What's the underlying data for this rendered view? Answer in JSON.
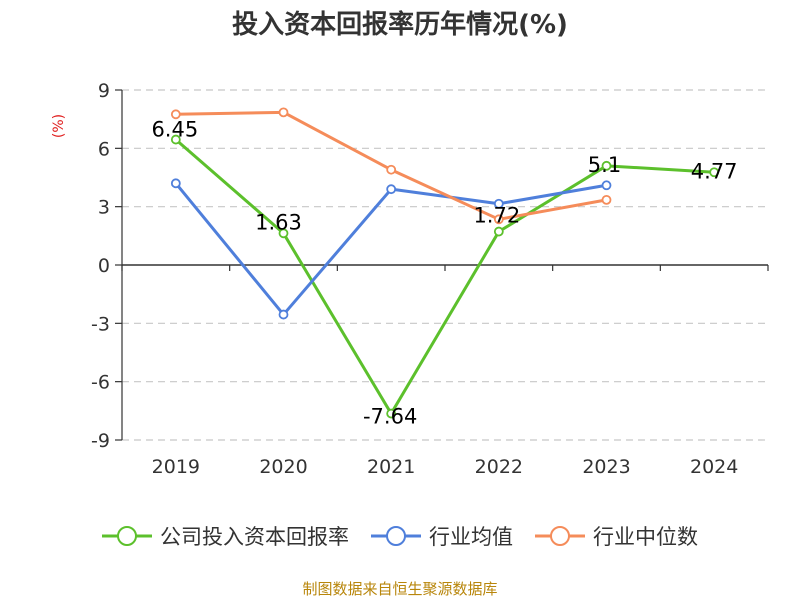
{
  "chart_data": {
    "type": "line",
    "title": "投入资本回报率历年情况(%)",
    "ylabel": "(%)",
    "categories": [
      "2019",
      "2020",
      "2021",
      "2022",
      "2023",
      "2024"
    ],
    "y_ticks": [
      "9",
      "6",
      "3",
      "0",
      "-3",
      "-6",
      "-9"
    ],
    "ylim": [
      -9,
      9
    ],
    "grid": true,
    "legend_position": "bottom",
    "series": [
      {
        "name": "公司投入资本回报率",
        "color": "#5cc02c",
        "values": [
          6.45,
          1.63,
          -7.64,
          1.72,
          5.1,
          4.77
        ],
        "labels": [
          "6.45",
          "1.63",
          "-7.64",
          "1.72",
          "5.1",
          "4.77"
        ]
      },
      {
        "name": "行业均值",
        "color": "#4f7fdb",
        "values": [
          4.2,
          -2.55,
          3.9,
          3.15,
          4.1,
          null
        ]
      },
      {
        "name": "行业中位数",
        "color": "#f58c5a",
        "values": [
          7.75,
          7.85,
          4.9,
          2.35,
          3.35,
          null
        ]
      }
    ],
    "source": "制图数据来自恒生聚源数据库"
  }
}
